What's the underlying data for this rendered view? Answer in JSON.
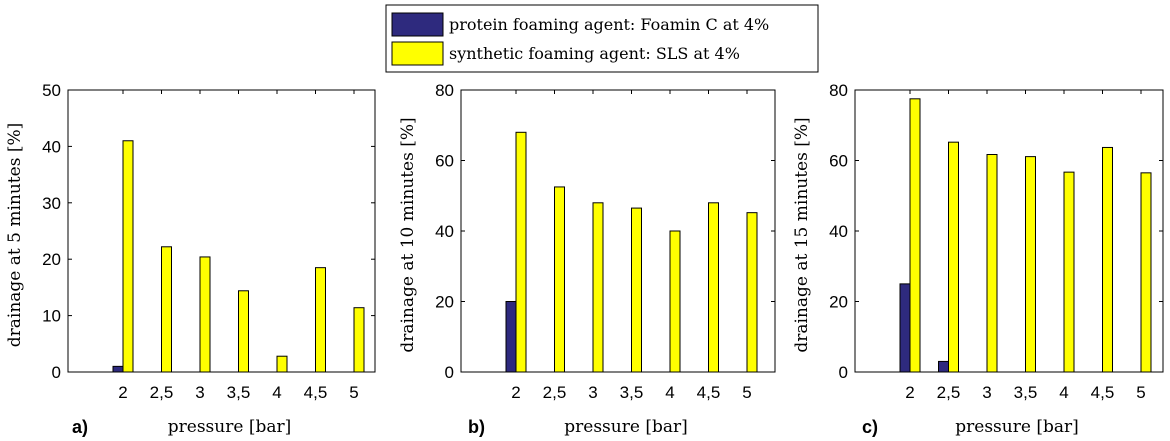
{
  "legend": {
    "items": [
      {
        "label": "protein foaming agent: Foamin C at 4%",
        "color": "#2e2a7e"
      },
      {
        "label": "synthetic foaming agent: SLS at 4%",
        "color": "#ffff00"
      }
    ]
  },
  "chart_data": [
    {
      "type": "bar",
      "panel_label": "a)",
      "xlabel": "pressure [bar]",
      "ylabel": "drainage at 5 minutes [%]",
      "categories": [
        "2",
        "2,5",
        "3",
        "3,5",
        "4",
        "4,5",
        "5"
      ],
      "ylim": [
        0,
        50
      ],
      "yticks": [
        0,
        10,
        20,
        30,
        40,
        50
      ],
      "grid": false,
      "series": [
        {
          "name": "protein foaming agent: Foamin C at 4%",
          "values": [
            1,
            0,
            0,
            0,
            0,
            0,
            0
          ]
        },
        {
          "name": "synthetic foaming agent: SLS at 4%",
          "values": [
            41,
            22.2,
            20.4,
            14.4,
            2.8,
            18.5,
            11.4
          ]
        }
      ]
    },
    {
      "type": "bar",
      "panel_label": "b)",
      "xlabel": "pressure [bar]",
      "ylabel": "drainage at 10 minutes [%]",
      "categories": [
        "2",
        "2,5",
        "3",
        "3,5",
        "4",
        "4,5",
        "5"
      ],
      "ylim": [
        0,
        80
      ],
      "yticks": [
        0,
        20,
        40,
        60,
        80
      ],
      "grid": false,
      "series": [
        {
          "name": "protein foaming agent: Foamin C at 4%",
          "values": [
            20,
            0,
            0,
            0,
            0,
            0,
            0
          ]
        },
        {
          "name": "synthetic foaming agent: SLS at 4%",
          "values": [
            68,
            52.5,
            48,
            46.5,
            40,
            48,
            45.2
          ]
        }
      ]
    },
    {
      "type": "bar",
      "panel_label": "c)",
      "xlabel": "pressure [bar]",
      "ylabel": "drainage at 15 minutes [%]",
      "categories": [
        "2",
        "2,5",
        "3",
        "3,5",
        "4",
        "4,5",
        "5"
      ],
      "ylim": [
        0,
        80
      ],
      "yticks": [
        0,
        20,
        40,
        60,
        80
      ],
      "grid": false,
      "series": [
        {
          "name": "protein foaming agent: Foamin C at 4%",
          "values": [
            25,
            3,
            0,
            0,
            0,
            0,
            0
          ]
        },
        {
          "name": "synthetic foaming agent: SLS at 4%",
          "values": [
            77.5,
            65.2,
            61.7,
            61.1,
            56.7,
            63.7,
            56.5
          ]
        }
      ]
    }
  ]
}
